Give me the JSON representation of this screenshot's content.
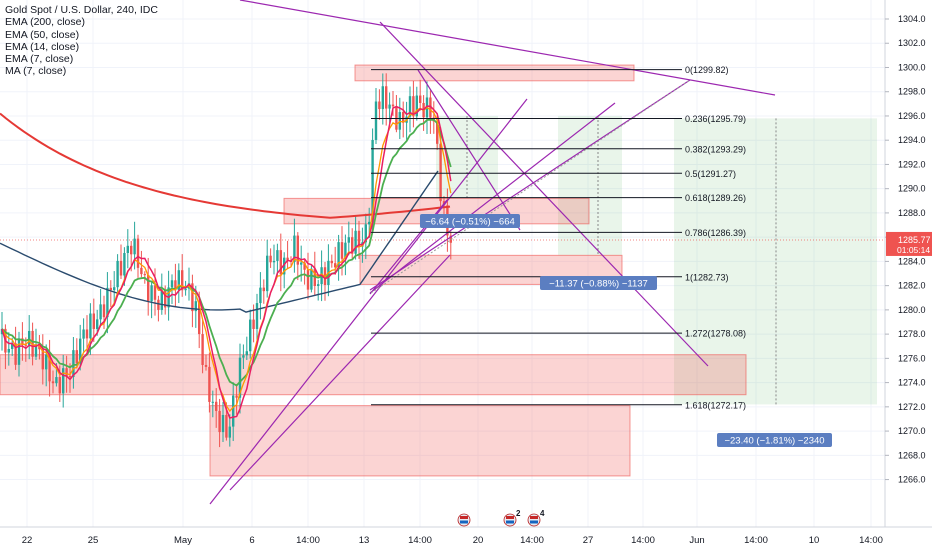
{
  "legend": {
    "title": "Gold Spot / U.S. Dollar, 240, IDC",
    "lines": [
      "EMA (200, close)",
      "EMA (50, close)",
      "EMA (14, close)",
      "EMA (7, close)",
      "MA (7, close)"
    ]
  },
  "price_badge": {
    "price": "1285.77",
    "countdown": "01:05:14",
    "color": "#ef5350"
  },
  "colors": {
    "up": "#26a69a",
    "down": "#ef5350",
    "ema200": "#e53935",
    "ema50": "#2a4b6e",
    "ema14": "#4caf50",
    "ema7": "#ff9800",
    "ma7": "#e91e63",
    "purple": "#9c27b0",
    "zone_fill": "rgba(239,83,80,0.25)",
    "target_fill": "rgba(76,175,80,0.12)",
    "measure_bg": "#5b7ec1"
  },
  "chart_data": {
    "type": "candlestick",
    "symbol": "Gold Spot / U.S. Dollar",
    "timeframe": "240",
    "source": "IDC",
    "ylim": [
      1265,
      1305
    ],
    "y_ticks": [
      1266,
      1268,
      1270,
      1272,
      1274,
      1276,
      1278,
      1280,
      1282,
      1284,
      1286,
      1288,
      1290,
      1292,
      1294,
      1296,
      1298,
      1300,
      1302,
      1304
    ],
    "x_ticks": [
      "22",
      "25",
      "May",
      "6",
      "14:00",
      "13",
      "14:00",
      "20",
      "14:00",
      "27",
      "14:00",
      "Jun",
      "14:00",
      "10",
      "14:00"
    ],
    "last_price": 1285.77,
    "fibonacci": [
      {
        "level": "0",
        "price": 1299.82
      },
      {
        "level": "0.236",
        "price": 1295.79
      },
      {
        "level": "0.382",
        "price": 1293.29
      },
      {
        "level": "0.5",
        "price": 1291.27
      },
      {
        "level": "0.618",
        "price": 1289.26
      },
      {
        "level": "0.786",
        "price": 1286.39
      },
      {
        "level": "1",
        "price": 1282.73
      },
      {
        "level": "1.272",
        "price": 1278.08
      },
      {
        "level": "1.618",
        "price": 1272.17
      }
    ],
    "measurements": [
      {
        "label": "−6.64 (−0.51%) −664"
      },
      {
        "label": "−11.37 (−0.88%) −1137"
      },
      {
        "label": "−23.40 (−1.81%) −2340"
      }
    ],
    "event_badges": [
      "",
      "2",
      "4"
    ]
  }
}
